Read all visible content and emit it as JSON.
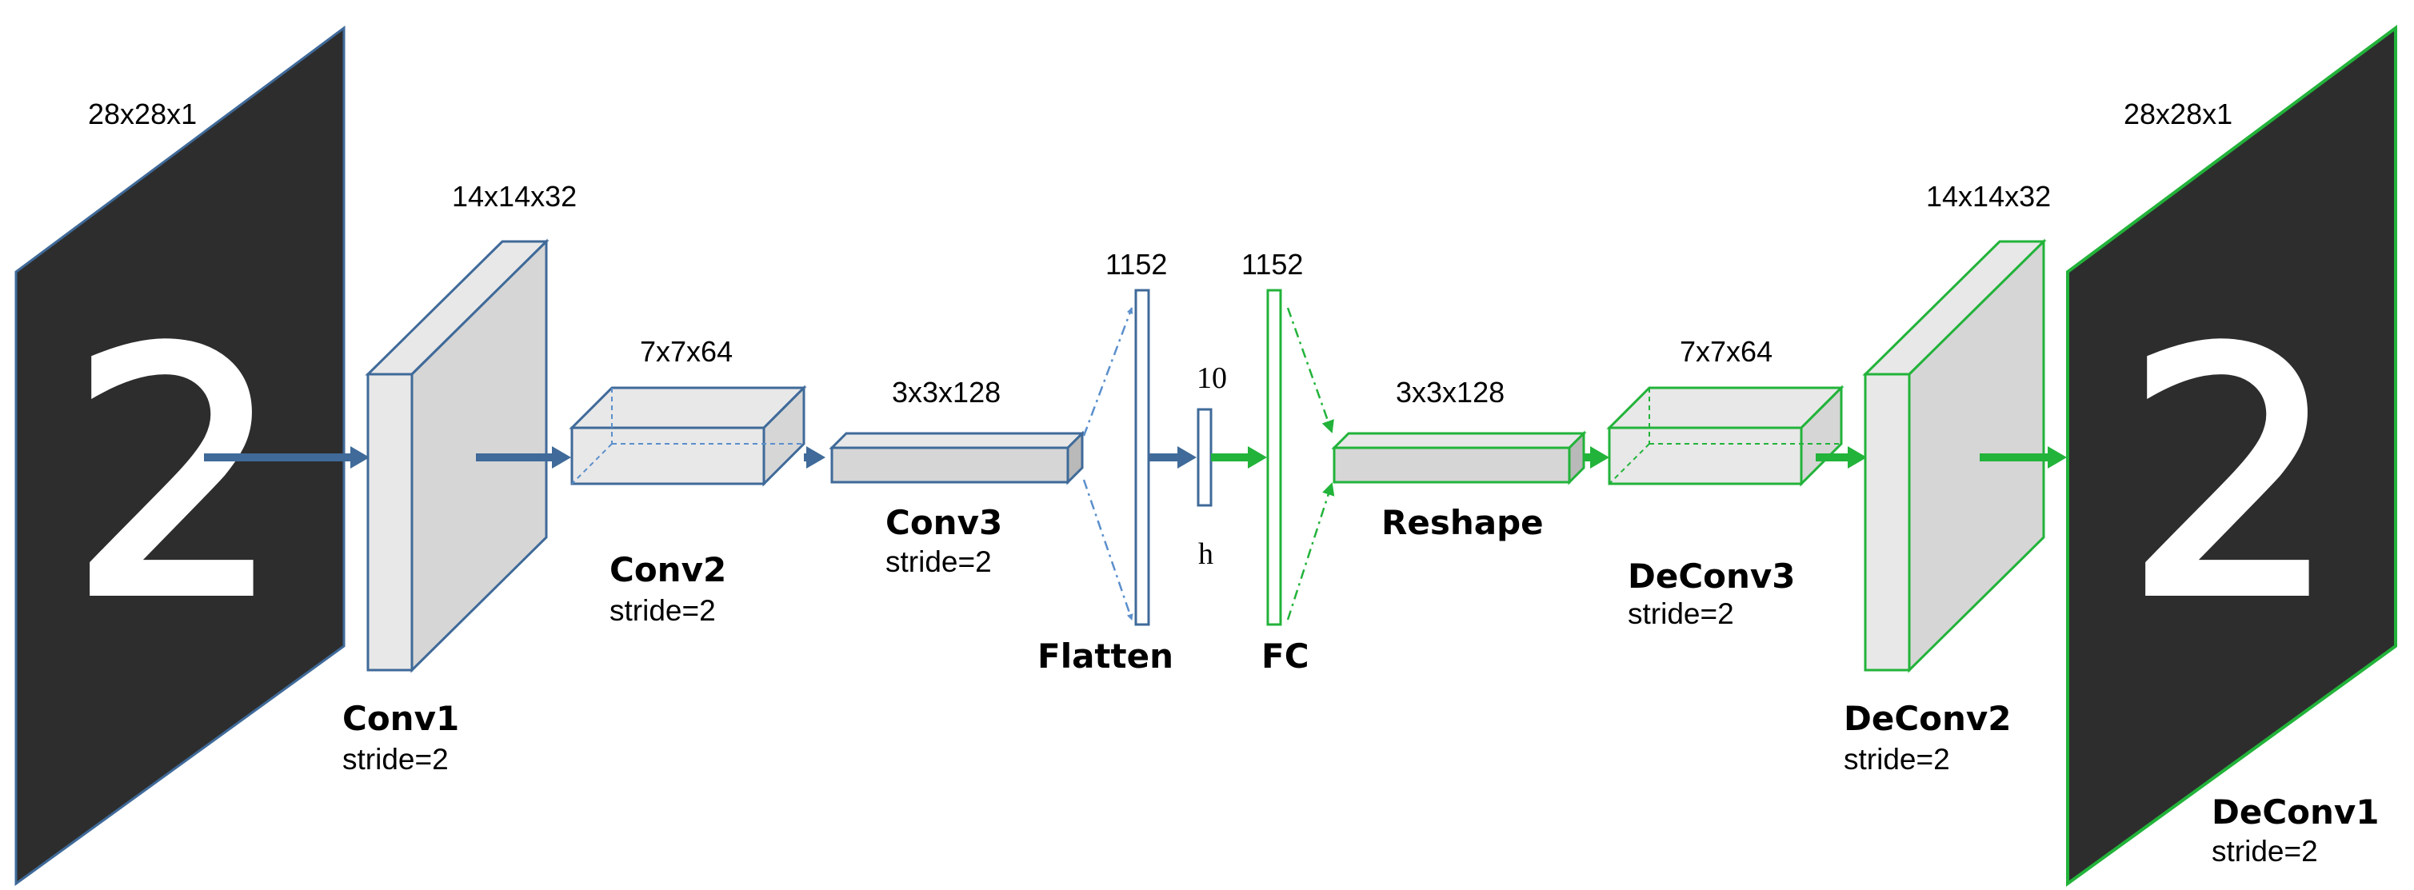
{
  "colors": {
    "encoder": "#3f6a99",
    "encoder_dash": "#5b8fcc",
    "decoder": "#22b33a",
    "panel": "#2d2d2d",
    "face_light": "#e8e8e8",
    "face_mid": "#d6d6d6",
    "face_dark": "#b9b9b9"
  },
  "input": {
    "dims": "28x28x1",
    "digit": "2"
  },
  "conv1": {
    "dims": "14x14x32",
    "label": "Conv1",
    "stride": "stride=2"
  },
  "conv2": {
    "dims": "7x7x64",
    "label": "Conv2",
    "stride": "stride=2"
  },
  "conv3": {
    "dims": "3x3x128",
    "label": "Conv3",
    "stride": "stride=2"
  },
  "flatten": {
    "dims": "1152",
    "label": "Flatten"
  },
  "code": {
    "dims": "10",
    "label": "h"
  },
  "fc": {
    "dims": "1152",
    "label": "FC"
  },
  "reshape": {
    "dims": "3x3x128",
    "label": "Reshape"
  },
  "deconv3": {
    "dims": "7x7x64",
    "label": "DeConv3",
    "stride": "stride=2"
  },
  "deconv2": {
    "dims": "14x14x32",
    "label": "DeConv2",
    "stride": "stride=2"
  },
  "output": {
    "dims": "28x28x1",
    "digit": "2",
    "label": "DeConv1",
    "stride": "stride=2"
  }
}
